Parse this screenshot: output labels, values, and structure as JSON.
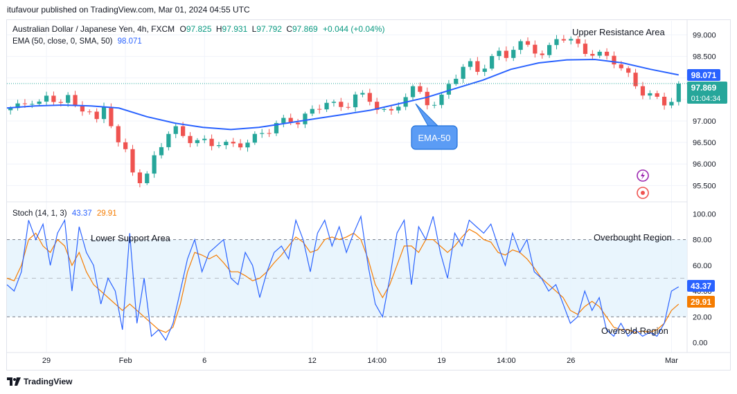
{
  "header": {
    "publisher_line": "itufavour published on TradingView.com, Mar 01, 2024 04:55 UTC"
  },
  "instrument": {
    "title": "Australian Dollar / Japanese Yen, 4h, FXCM",
    "open_label": "O",
    "open": "97.825",
    "high_label": "H",
    "high": "97.931",
    "low_label": "L",
    "low": "97.792",
    "close_label": "C",
    "close": "97.869",
    "change": "+0.044 (+0.04%)"
  },
  "ema_legend": {
    "label": "EMA (50, close, 0, SMA, 50)",
    "value": "98.071"
  },
  "stoch_legend": {
    "label": "Stoch (14, 1, 3)",
    "k_value": "43.37",
    "d_value": "29.91"
  },
  "price_badges": {
    "ema": "98.071",
    "last": "97.869",
    "countdown": "01:04:34"
  },
  "stoch_badges": {
    "k": "43.37",
    "d": "29.91"
  },
  "annotations": {
    "upper_resistance": "Upper Resistance Area",
    "ema_callout": "EMA-50",
    "lower_support": "Lower Support Area",
    "overbought": "Overbought Region",
    "oversold": "Oversold Region"
  },
  "colors": {
    "up": "#26a69a",
    "down": "#ef5350",
    "ema": "#2962ff",
    "stoch_k": "#2962ff",
    "stoch_d": "#f57c00",
    "band_fill": "#e3f2fd",
    "callout": "#5b9cf5",
    "badge_ema": "#2962ff",
    "badge_last": "#26a69a",
    "icon_purple": "#9c27b0",
    "icon_red": "#ef5350"
  },
  "icons": [
    "lightning-icon",
    "record-icon",
    "tradingview-logo-icon"
  ],
  "footer": {
    "brand": "TradingView"
  },
  "chart_data": [
    {
      "type": "candlestick",
      "title": "Australian Dollar / Japanese Yen, 4h, FXCM",
      "y_ticks": [
        "99.000",
        "98.500",
        "98.000",
        "97.500",
        "97.000",
        "96.500",
        "96.000",
        "95.500"
      ],
      "x_ticks": [
        "29",
        "Feb",
        "6",
        "12",
        "14:00",
        "19",
        "14:00",
        "26",
        "Mar"
      ],
      "ylim": [
        95.2,
        99.25
      ],
      "grid": true,
      "close_path": [
        97.25,
        97.3,
        97.55,
        97.45,
        97.55,
        97.4,
        97.5,
        97.3,
        97.4,
        96.95,
        97.4,
        96.5,
        96.3,
        95.8,
        95.55,
        96.1,
        96.5,
        96.85,
        96.7,
        96.6,
        96.5,
        96.4,
        96.5,
        96.45,
        96.5,
        96.55,
        96.6,
        96.75,
        97.0,
        97.05,
        97.0,
        97.1,
        97.2,
        97.5,
        97.4,
        97.3,
        97.6,
        97.5,
        97.4,
        97.3,
        97.2,
        97.5,
        97.7,
        97.6,
        97.4,
        97.5,
        97.9,
        98.1,
        98.3,
        98.2,
        98.4,
        98.6,
        98.5,
        98.7,
        98.8,
        98.7,
        98.5,
        98.9,
        98.9,
        98.8,
        98.7,
        98.6,
        98.5,
        98.4,
        98.2,
        98.0,
        97.75,
        97.6,
        97.4,
        97.35,
        97.869
      ],
      "ema_path": [
        97.3,
        97.35,
        97.37,
        97.35,
        97.3,
        97.1,
        96.95,
        96.85,
        96.8,
        96.85,
        96.95,
        97.05,
        97.15,
        97.25,
        97.4,
        97.55,
        97.75,
        97.95,
        98.2,
        98.35,
        98.42,
        98.43,
        98.35,
        98.2,
        98.071
      ],
      "series": [
        {
          "name": "EMA (50, close, 0, SMA, 50)",
          "last_value": 98.071
        }
      ],
      "last_close": 97.869,
      "annotations": [
        "Upper Resistance Area",
        "EMA-50"
      ]
    },
    {
      "type": "line",
      "title": "Stoch (14, 1, 3)",
      "y_ticks": [
        "100.00",
        "80.00",
        "60.00",
        "40.00",
        "20.00",
        "0.00"
      ],
      "ylim": [
        -5,
        105
      ],
      "reference_lines": [
        80,
        50,
        20
      ],
      "band": [
        20,
        80
      ],
      "x_ticks": [
        "29",
        "Feb",
        "6",
        "12",
        "14:00",
        "19",
        "14:00",
        "26",
        "Mar"
      ],
      "series": [
        {
          "name": "%K",
          "last_value": 43.37,
          "values": [
            45,
            40,
            55,
            95,
            80,
            92,
            60,
            85,
            95,
            40,
            90,
            70,
            60,
            30,
            50,
            40,
            10,
            85,
            15,
            50,
            5,
            10,
            2,
            15,
            40,
            65,
            80,
            55,
            70,
            75,
            80,
            50,
            45,
            70,
            60,
            35,
            55,
            70,
            75,
            65,
            95,
            80,
            55,
            85,
            95,
            75,
            90,
            70,
            85,
            98,
            60,
            30,
            20,
            50,
            85,
            95,
            45,
            90,
            80,
            98,
            70,
            50,
            85,
            75,
            95,
            90,
            85,
            92,
            75,
            60,
            85,
            70,
            80,
            55,
            50,
            40,
            45,
            30,
            15,
            20,
            40,
            25,
            35,
            10,
            5,
            15,
            5,
            10,
            5,
            8,
            5,
            15,
            40,
            43.37
          ]
        },
        {
          "name": "%D",
          "last_value": 29.91,
          "values": [
            50,
            48,
            60,
            80,
            85,
            75,
            70,
            80,
            75,
            60,
            70,
            55,
            45,
            40,
            35,
            30,
            25,
            30,
            25,
            20,
            15,
            10,
            8,
            12,
            30,
            55,
            70,
            68,
            65,
            68,
            62,
            55,
            55,
            52,
            48,
            50,
            55,
            62,
            68,
            75,
            82,
            78,
            70,
            72,
            80,
            82,
            80,
            82,
            85,
            80,
            65,
            45,
            35,
            45,
            60,
            75,
            75,
            70,
            80,
            80,
            75,
            70,
            75,
            82,
            88,
            85,
            80,
            78,
            70,
            68,
            72,
            70,
            65,
            58,
            50,
            45,
            40,
            35,
            25,
            22,
            28,
            32,
            28,
            20,
            12,
            10,
            10,
            8,
            9,
            8,
            10,
            15,
            25,
            29.91
          ]
        }
      ],
      "annotations": [
        "Lower Support Area",
        "Overbought Region",
        "Oversold Region"
      ]
    }
  ]
}
